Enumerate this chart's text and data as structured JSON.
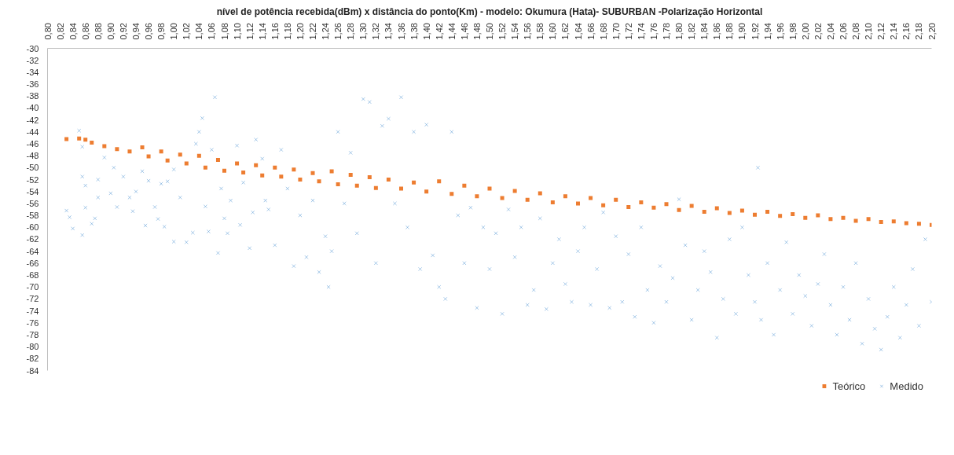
{
  "chart_data": {
    "type": "scatter",
    "title": "nível de potência recebida(dBm) x distância do ponto(Km) - modelo: Okumura (Hata)- SUBURBAN -Polarização Horizontal",
    "xlim": [
      0.8,
      2.2
    ],
    "ylim": [
      -84,
      -30
    ],
    "xticks": [
      {
        "value": 0.8,
        "label": "0,80"
      },
      {
        "value": 0.82,
        "label": "0,82"
      },
      {
        "value": 0.84,
        "label": "0,84"
      },
      {
        "value": 0.86,
        "label": "0,86"
      },
      {
        "value": 0.88,
        "label": "0,88"
      },
      {
        "value": 0.9,
        "label": "0,90"
      },
      {
        "value": 0.92,
        "label": "0,92"
      },
      {
        "value": 0.94,
        "label": "0,94"
      },
      {
        "value": 0.96,
        "label": "0,96"
      },
      {
        "value": 0.98,
        "label": "0,98"
      },
      {
        "value": 1.0,
        "label": "1,00"
      },
      {
        "value": 1.02,
        "label": "1,02"
      },
      {
        "value": 1.04,
        "label": "1,04"
      },
      {
        "value": 1.06,
        "label": "1,06"
      },
      {
        "value": 1.08,
        "label": "1,08"
      },
      {
        "value": 1.1,
        "label": "1,10"
      },
      {
        "value": 1.12,
        "label": "1,12"
      },
      {
        "value": 1.14,
        "label": "1,14"
      },
      {
        "value": 1.16,
        "label": "1,16"
      },
      {
        "value": 1.18,
        "label": "1,18"
      },
      {
        "value": 1.2,
        "label": "1,20"
      },
      {
        "value": 1.22,
        "label": "1,22"
      },
      {
        "value": 1.24,
        "label": "1,24"
      },
      {
        "value": 1.26,
        "label": "1,26"
      },
      {
        "value": 1.28,
        "label": "1,28"
      },
      {
        "value": 1.3,
        "label": "1,30"
      },
      {
        "value": 1.32,
        "label": "1,32"
      },
      {
        "value": 1.34,
        "label": "1,34"
      },
      {
        "value": 1.36,
        "label": "1,36"
      },
      {
        "value": 1.38,
        "label": "1,38"
      },
      {
        "value": 1.4,
        "label": "1,40"
      },
      {
        "value": 1.42,
        "label": "1,42"
      },
      {
        "value": 1.44,
        "label": "1,44"
      },
      {
        "value": 1.46,
        "label": "1,46"
      },
      {
        "value": 1.48,
        "label": "1,48"
      },
      {
        "value": 1.5,
        "label": "1,50"
      },
      {
        "value": 1.52,
        "label": "1,52"
      },
      {
        "value": 1.54,
        "label": "1,54"
      },
      {
        "value": 1.56,
        "label": "1,56"
      },
      {
        "value": 1.58,
        "label": "1,58"
      },
      {
        "value": 1.6,
        "label": "1,60"
      },
      {
        "value": 1.62,
        "label": "1,62"
      },
      {
        "value": 1.64,
        "label": "1,64"
      },
      {
        "value": 1.66,
        "label": "1,66"
      },
      {
        "value": 1.68,
        "label": "1,68"
      },
      {
        "value": 1.7,
        "label": "1,70"
      },
      {
        "value": 1.72,
        "label": "1,72"
      },
      {
        "value": 1.74,
        "label": "1,74"
      },
      {
        "value": 1.76,
        "label": "1,76"
      },
      {
        "value": 1.78,
        "label": "1,78"
      },
      {
        "value": 1.8,
        "label": "1,80"
      },
      {
        "value": 1.82,
        "label": "1,82"
      },
      {
        "value": 1.84,
        "label": "1,84"
      },
      {
        "value": 1.86,
        "label": "1,86"
      },
      {
        "value": 1.88,
        "label": "1,88"
      },
      {
        "value": 1.9,
        "label": "1,90"
      },
      {
        "value": 1.92,
        "label": "1,92"
      },
      {
        "value": 1.94,
        "label": "1,94"
      },
      {
        "value": 1.96,
        "label": "1,96"
      },
      {
        "value": 1.98,
        "label": "1,98"
      },
      {
        "value": 2.0,
        "label": "2,00"
      },
      {
        "value": 2.02,
        "label": "2,02"
      },
      {
        "value": 2.04,
        "label": "2,04"
      },
      {
        "value": 2.06,
        "label": "2,06"
      },
      {
        "value": 2.08,
        "label": "2,08"
      },
      {
        "value": 2.1,
        "label": "2,10"
      },
      {
        "value": 2.12,
        "label": "2,12"
      },
      {
        "value": 2.14,
        "label": "2,14"
      },
      {
        "value": 2.16,
        "label": "2,16"
      },
      {
        "value": 2.18,
        "label": "2,18"
      },
      {
        "value": 2.2,
        "label": "2,20"
      }
    ],
    "yticks": [
      -30,
      -32,
      -34,
      -36,
      -38,
      -40,
      -42,
      -44,
      -46,
      -48,
      -50,
      -52,
      -54,
      -56,
      -58,
      -60,
      -62,
      -64,
      -66,
      -68,
      -70,
      -72,
      -74,
      -76,
      -78,
      -80,
      -82,
      -84
    ],
    "grid": false,
    "legend": "bottom",
    "series": [
      {
        "name": "Teórico",
        "color": "#ed7d31",
        "marker": "square",
        "x": [
          0.83,
          0.85,
          0.86,
          0.87,
          0.89,
          0.91,
          0.93,
          0.95,
          0.96,
          0.98,
          0.99,
          1.01,
          1.02,
          1.04,
          1.05,
          1.07,
          1.08,
          1.1,
          1.11,
          1.13,
          1.14,
          1.16,
          1.17,
          1.19,
          1.2,
          1.22,
          1.23,
          1.25,
          1.26,
          1.28,
          1.29,
          1.31,
          1.32,
          1.34,
          1.36,
          1.38,
          1.4,
          1.42,
          1.44,
          1.46,
          1.48,
          1.5,
          1.52,
          1.54,
          1.56,
          1.58,
          1.6,
          1.62,
          1.64,
          1.66,
          1.68,
          1.7,
          1.72,
          1.74,
          1.76,
          1.78,
          1.8,
          1.82,
          1.84,
          1.86,
          1.88,
          1.9,
          1.92,
          1.94,
          1.96,
          1.98,
          2.0,
          2.02,
          2.04,
          2.06,
          2.08,
          2.1,
          2.12,
          2.14,
          2.16,
          2.18,
          2.2
        ],
        "values": [
          -45.2,
          -45.1,
          -45.3,
          -45.8,
          -46.4,
          -46.9,
          -47.3,
          -46.6,
          -48.1,
          -47.3,
          -48.8,
          -47.8,
          -49.3,
          -48.0,
          -50.0,
          -48.7,
          -50.5,
          -49.3,
          -50.8,
          -49.6,
          -51.3,
          -50.0,
          -51.5,
          -50.3,
          -52.0,
          -50.9,
          -52.3,
          -50.6,
          -52.8,
          -51.2,
          -53.0,
          -51.6,
          -53.4,
          -52.0,
          -53.5,
          -52.5,
          -54.0,
          -52.3,
          -54.4,
          -53.0,
          -54.8,
          -53.5,
          -55.1,
          -53.9,
          -55.4,
          -54.3,
          -55.8,
          -54.8,
          -56.0,
          -55.1,
          -56.3,
          -55.4,
          -56.6,
          -55.8,
          -56.7,
          -56.1,
          -57.1,
          -56.4,
          -57.4,
          -56.8,
          -57.6,
          -57.2,
          -57.9,
          -57.4,
          -58.1,
          -57.8,
          -58.4,
          -58.0,
          -58.6,
          -58.4,
          -58.9,
          -58.6,
          -59.1,
          -59.0,
          -59.3,
          -59.4,
          -59.6
        ]
      },
      {
        "name": "Medido",
        "color": "#5b9bd5",
        "marker": "cross",
        "x": [
          0.83,
          0.835,
          0.84,
          0.85,
          0.855,
          0.855,
          0.86,
          0.86,
          0.855,
          0.87,
          0.875,
          0.88,
          0.88,
          0.89,
          0.9,
          0.905,
          0.91,
          0.92,
          0.93,
          0.94,
          0.935,
          0.95,
          0.955,
          0.96,
          0.97,
          0.975,
          0.98,
          0.985,
          0.99,
          1.0,
          1.0,
          1.01,
          1.02,
          1.03,
          1.035,
          1.04,
          1.045,
          1.05,
          1.055,
          1.06,
          1.065,
          1.07,
          1.075,
          1.08,
          1.085,
          1.09,
          1.1,
          1.105,
          1.11,
          1.12,
          1.125,
          1.13,
          1.14,
          1.145,
          1.15,
          1.16,
          1.17,
          1.18,
          1.19,
          1.2,
          1.21,
          1.22,
          1.23,
          1.24,
          1.245,
          1.25,
          1.26,
          1.27,
          1.28,
          1.29,
          1.3,
          1.31,
          1.32,
          1.33,
          1.34,
          1.35,
          1.36,
          1.37,
          1.38,
          1.39,
          1.4,
          1.41,
          1.42,
          1.43,
          1.44,
          1.45,
          1.46,
          1.47,
          1.48,
          1.49,
          1.5,
          1.51,
          1.52,
          1.53,
          1.54,
          1.55,
          1.56,
          1.57,
          1.58,
          1.59,
          1.6,
          1.61,
          1.62,
          1.63,
          1.64,
          1.65,
          1.66,
          1.67,
          1.68,
          1.69,
          1.7,
          1.71,
          1.72,
          1.73,
          1.74,
          1.75,
          1.76,
          1.77,
          1.78,
          1.79,
          1.8,
          1.81,
          1.82,
          1.83,
          1.84,
          1.85,
          1.86,
          1.87,
          1.88,
          1.89,
          1.9,
          1.91,
          1.92,
          1.925,
          1.93,
          1.94,
          1.95,
          1.96,
          1.97,
          1.98,
          1.99,
          2.0,
          2.01,
          2.02,
          2.03,
          2.04,
          2.05,
          2.06,
          2.07,
          2.08,
          2.09,
          2.1,
          2.11,
          2.12,
          2.13,
          2.14,
          2.15,
          2.16,
          2.17,
          2.18,
          2.19,
          2.2
        ],
        "values": [
          -57.2,
          -58.3,
          -60.2,
          -43.8,
          -46.5,
          -51.5,
          -53,
          -56.7,
          -61.3,
          -59.4,
          -58.5,
          -55,
          -52,
          -48.3,
          -54.3,
          -50,
          -56.6,
          -51.5,
          -55,
          -54,
          -57.3,
          -50.6,
          -59.7,
          -52.2,
          -56.6,
          -58.6,
          -52.7,
          -59.9,
          -52.3,
          -50.3,
          -62.4,
          -55,
          -62.5,
          -60.9,
          -46,
          -44,
          -41.7,
          -56.5,
          -60.7,
          -47,
          -38.2,
          -64.3,
          -53.5,
          -58.5,
          -61,
          -55.5,
          -46.3,
          -59.6,
          -52.5,
          -63.5,
          -57.5,
          -45.3,
          -48.5,
          -55.5,
          -57,
          -63,
          -47,
          -53.5,
          -66.5,
          -58,
          -65,
          -55.5,
          -67.5,
          -61.5,
          -70,
          -64,
          -44,
          -56,
          -47.5,
          -61,
          -38.5,
          -39,
          -66,
          -43,
          -41.8,
          -56,
          -38.2,
          -60,
          -44,
          -67,
          -42.8,
          -64.7,
          -70,
          -72,
          -44,
          -58,
          -66,
          -56.7,
          -73.5,
          -60,
          -67,
          -61,
          -74.5,
          -57,
          -65,
          -60,
          -73,
          -70.5,
          -58.5,
          -73.7,
          -66,
          -62,
          -69.5,
          -72.5,
          -64,
          -60,
          -73,
          -67,
          -57.5,
          -73.5,
          -61.5,
          -72.5,
          -64.5,
          -75,
          -60,
          -70.5,
          -76,
          -66.5,
          -72.5,
          -68.5,
          -55.3,
          -63,
          -75.5,
          -70.5,
          -64,
          -67.5,
          -78.5,
          -72,
          -62,
          -74.5,
          -60,
          -68,
          -72.5,
          -50,
          -75.5,
          -66,
          -78,
          -70.5,
          -62.5,
          -74.5,
          -68,
          -71.5,
          -76.5,
          -69.5,
          -64.5,
          -73,
          -78,
          -70,
          -75.5,
          -66,
          -79.5,
          -72,
          -77,
          -80.5,
          -75,
          -70,
          -78.5,
          -73,
          -67,
          -76.5,
          -62,
          -72.5
        ]
      }
    ]
  }
}
